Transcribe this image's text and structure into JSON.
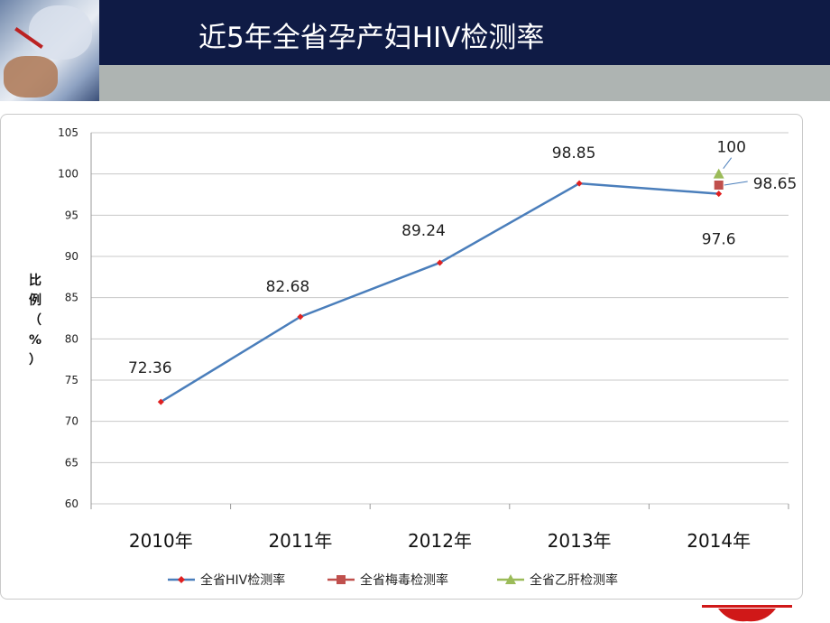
{
  "slide": {
    "title": "近5年全省孕产妇HIV检测率"
  },
  "chart_data": {
    "type": "line",
    "categories": [
      "2010年",
      "2011年",
      "2012年",
      "2013年",
      "2014年"
    ],
    "ylabel": "比例（%）",
    "ylim": [
      60,
      105
    ],
    "yticks": [
      60,
      65,
      70,
      75,
      80,
      85,
      90,
      95,
      100,
      105
    ],
    "grid": true,
    "legend_position": "bottom",
    "series": [
      {
        "name": "全省HIV检测率",
        "color": "#4a7ebb",
        "marker_color": "#e02020",
        "marker": "diamond",
        "values": [
          72.36,
          82.68,
          89.24,
          98.85,
          97.6
        ],
        "labels": [
          "72.36",
          "82.68",
          "89.24",
          "98.85",
          "97.6"
        ]
      },
      {
        "name": "全省梅毒检测率",
        "color": "#c0504d",
        "marker": "square",
        "values": [
          null,
          null,
          null,
          null,
          98.65
        ],
        "labels": [
          "",
          "",
          "",
          "",
          "98.65"
        ]
      },
      {
        "name": "全省乙肝检测率",
        "color": "#9bbb59",
        "marker": "triangle",
        "values": [
          null,
          null,
          null,
          null,
          100
        ],
        "labels": [
          "",
          "",
          "",
          "",
          "100"
        ]
      }
    ]
  }
}
